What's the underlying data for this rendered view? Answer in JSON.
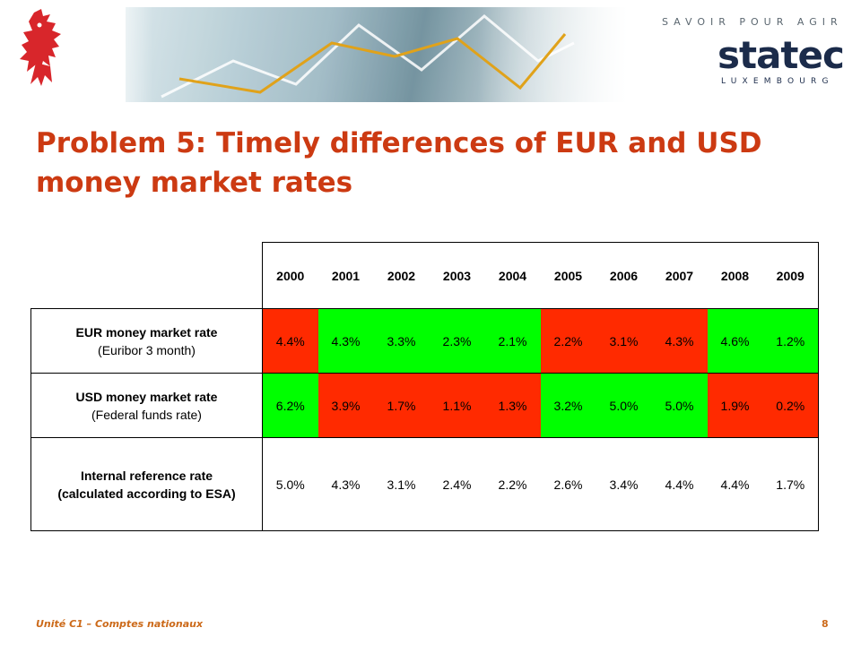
{
  "header": {
    "tagline": "SAVOIR POUR AGIR",
    "brand": "statec",
    "brand_sub": "LUXEMBOURG"
  },
  "slide": {
    "title": "Problem 5: Timely differences of EUR and USD money market rates",
    "footer_left": "Unité C1 – Comptes nationaux",
    "page_number": "8"
  },
  "colors": {
    "title": "#cc3a12",
    "above_reference": "#ff2a00",
    "below_reference": "#00ff00",
    "footer": "#cc6a1a"
  },
  "table": {
    "years": [
      "2000",
      "2001",
      "2002",
      "2003",
      "2004",
      "2005",
      "2006",
      "2007",
      "2008",
      "2009"
    ],
    "rows": [
      {
        "label_bold": "EUR money market rate",
        "label_sub": "(Euribor 3 month)",
        "values": [
          "4.4%",
          "4.3%",
          "3.3%",
          "2.3%",
          "2.1%",
          "2.2%",
          "3.1%",
          "4.3%",
          "4.6%",
          "1.2%"
        ],
        "colors": [
          "red",
          "green",
          "green",
          "green",
          "green",
          "red",
          "red",
          "red",
          "green",
          "green"
        ]
      },
      {
        "label_bold": "USD money market rate",
        "label_sub": "(Federal funds rate)",
        "values": [
          "6.2%",
          "3.9%",
          "1.7%",
          "1.1%",
          "1.3%",
          "3.2%",
          "5.0%",
          "5.0%",
          "1.9%",
          "0.2%"
        ],
        "colors": [
          "green",
          "red",
          "red",
          "red",
          "red",
          "green",
          "green",
          "green",
          "red",
          "red"
        ]
      },
      {
        "label_bold": "Internal reference rate",
        "label_bold_2": "(calculated according to ESA)",
        "values": [
          "5.0%",
          "4.3%",
          "3.1%",
          "2.4%",
          "2.2%",
          "2.6%",
          "3.4%",
          "4.4%",
          "4.4%",
          "1.7%"
        ],
        "colors": [
          "white",
          "white",
          "white",
          "white",
          "white",
          "white",
          "white",
          "white",
          "white",
          "white"
        ]
      }
    ]
  }
}
